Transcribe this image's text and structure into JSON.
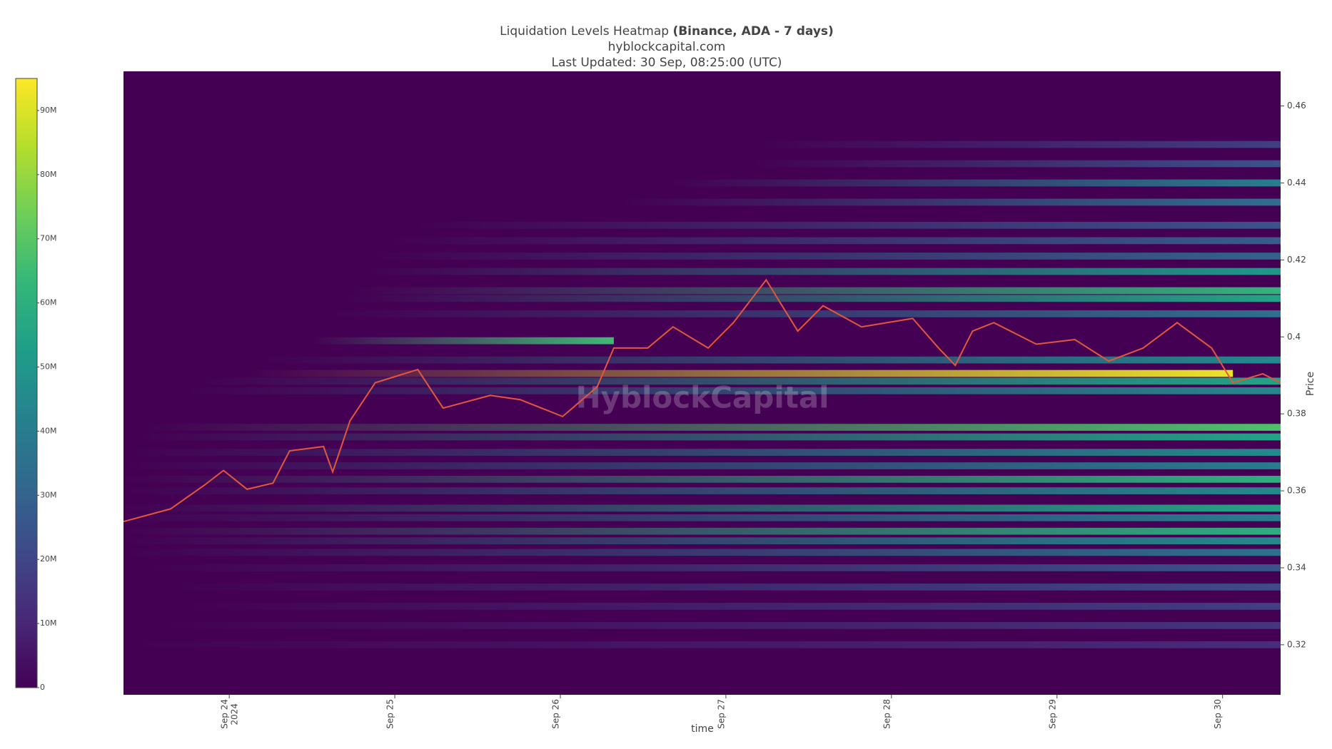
{
  "chart_data": {
    "type": "heatmap",
    "title": "Liquidation Levels Heatmap",
    "title_bold": "(Binance, ADA - 7 days)",
    "subtitle": "hyblockcapital.com",
    "updated": "Last Updated: 30 Sep, 08:25:00 (UTC)",
    "watermark": "HyblockCapital",
    "x_label": "time",
    "y_label": "Price",
    "xlim": [
      "2024-09-23T08:40",
      "2024-09-30T08:25"
    ],
    "xticks": [
      {
        "value": "2024-09-24T00:00",
        "label": "Sep 24",
        "year": "2024"
      },
      {
        "value": "2024-09-25T00:00",
        "label": "Sep 25"
      },
      {
        "value": "2024-09-26T00:00",
        "label": "Sep 26"
      },
      {
        "value": "2024-09-27T00:00",
        "label": "Sep 27"
      },
      {
        "value": "2024-09-28T00:00",
        "label": "Sep 28"
      },
      {
        "value": "2024-09-29T00:00",
        "label": "Sep 29"
      },
      {
        "value": "2024-09-30T00:00",
        "label": "Sep 30"
      }
    ],
    "ylim": [
      0.307,
      0.469
    ],
    "yticks": [
      0.32,
      0.34,
      0.36,
      0.38,
      0.4,
      0.42,
      0.44,
      0.46
    ],
    "zlim": [
      0,
      95000000
    ],
    "zticks": [
      0,
      {
        "value": 10000000,
        "label": "10M"
      },
      {
        "value": 20000000,
        "label": "20M"
      },
      {
        "value": 30000000,
        "label": "30M"
      },
      {
        "value": 40000000,
        "label": "40M"
      },
      {
        "value": 50000000,
        "label": "50M"
      },
      {
        "value": 60000000,
        "label": "60M"
      },
      {
        "value": 70000000,
        "label": "70M"
      },
      {
        "value": 80000000,
        "label": "80M"
      },
      {
        "value": 90000000,
        "label": "90M"
      }
    ],
    "colorscale": "viridis",
    "levels": [
      {
        "price": 0.45,
        "from": "2024-09-27T05:00",
        "to": "2024-09-30T08:25",
        "value": 18000000
      },
      {
        "price": 0.445,
        "from": "2024-09-27T04:00",
        "to": "2024-09-30T08:25",
        "value": 25000000
      },
      {
        "price": 0.44,
        "from": "2024-09-26T16:00",
        "to": "2024-09-30T08:25",
        "value": 40000000
      },
      {
        "price": 0.435,
        "from": "2024-09-26T09:00",
        "to": "2024-09-30T08:25",
        "value": 35000000
      },
      {
        "price": 0.429,
        "from": "2024-09-25T03:00",
        "to": "2024-09-30T08:25",
        "value": 25000000
      },
      {
        "price": 0.425,
        "from": "2024-09-24T23:00",
        "to": "2024-09-30T08:25",
        "value": 28000000
      },
      {
        "price": 0.421,
        "from": "2024-09-24T21:00",
        "to": "2024-09-30T08:25",
        "value": 30000000
      },
      {
        "price": 0.417,
        "from": "2024-09-24T20:00",
        "to": "2024-09-30T08:25",
        "value": 50000000
      },
      {
        "price": 0.412,
        "from": "2024-09-24T18:00",
        "to": "2024-09-30T08:25",
        "value": 62000000
      },
      {
        "price": 0.41,
        "from": "2024-09-24T17:00",
        "to": "2024-09-30T08:25",
        "value": 55000000
      },
      {
        "price": 0.406,
        "from": "2024-09-24T15:00",
        "to": "2024-09-30T08:25",
        "value": 35000000
      },
      {
        "price": 0.399,
        "from": "2024-09-24T12:00",
        "to": "2024-09-26T07:45",
        "value": 65000000
      },
      {
        "price": 0.394,
        "from": "2024-09-24T05:00",
        "to": "2024-09-30T08:25",
        "value": 45000000
      },
      {
        "price": 0.3905,
        "from": "2024-09-24T03:00",
        "to": "2024-09-30T01:30",
        "value": 92000000
      },
      {
        "price": 0.3885,
        "from": "2024-09-23T20:00",
        "to": "2024-09-30T08:25",
        "value": 55000000
      },
      {
        "price": 0.386,
        "from": "2024-09-23T18:00",
        "to": "2024-09-30T08:25",
        "value": 45000000
      },
      {
        "price": 0.3765,
        "from": "2024-09-23T12:00",
        "to": "2024-09-30T08:25",
        "value": 68000000
      },
      {
        "price": 0.374,
        "from": "2024-09-23T11:00",
        "to": "2024-09-30T08:25",
        "value": 55000000
      },
      {
        "price": 0.37,
        "from": "2024-09-23T10:00",
        "to": "2024-09-30T08:25",
        "value": 45000000
      },
      {
        "price": 0.3665,
        "from": "2024-09-23T09:00",
        "to": "2024-09-30T08:25",
        "value": 40000000
      },
      {
        "price": 0.363,
        "from": "2024-09-23T08:40",
        "to": "2024-09-30T08:25",
        "value": 60000000
      },
      {
        "price": 0.36,
        "from": "2024-09-23T08:40",
        "to": "2024-09-30T08:25",
        "value": 45000000
      },
      {
        "price": 0.3555,
        "from": "2024-09-23T08:40",
        "to": "2024-09-30T08:25",
        "value": 55000000
      },
      {
        "price": 0.353,
        "from": "2024-09-23T08:40",
        "to": "2024-09-30T08:25",
        "value": 40000000
      },
      {
        "price": 0.3495,
        "from": "2024-09-23T08:40",
        "to": "2024-09-30T08:25",
        "value": 60000000
      },
      {
        "price": 0.347,
        "from": "2024-09-23T08:40",
        "to": "2024-09-30T08:25",
        "value": 45000000
      },
      {
        "price": 0.344,
        "from": "2024-09-23T08:40",
        "to": "2024-09-30T08:25",
        "value": 35000000
      },
      {
        "price": 0.34,
        "from": "2024-09-23T12:00",
        "to": "2024-09-30T08:25",
        "value": 25000000
      },
      {
        "price": 0.335,
        "from": "2024-09-23T16:00",
        "to": "2024-09-30T08:25",
        "value": 22000000
      },
      {
        "price": 0.33,
        "from": "2024-09-23T18:00",
        "to": "2024-09-30T08:25",
        "value": 18000000
      },
      {
        "price": 0.325,
        "from": "2024-09-23T14:00",
        "to": "2024-09-30T08:25",
        "value": 15000000
      },
      {
        "price": 0.32,
        "from": "2024-09-23T10:00",
        "to": "2024-09-30T08:25",
        "value": 12000000
      }
    ],
    "series": [
      {
        "color": "#e4573d",
        "x": [
          "2024-09-23T08:40",
          "2024-09-23T15:30",
          "2024-09-23T20:25",
          "2024-09-23T23:10",
          "2024-09-24T02:35",
          "2024-09-24T06:20",
          "2024-09-24T08:45",
          "2024-09-24T13:40",
          "2024-09-24T15:00",
          "2024-09-24T17:30",
          "2024-09-24T21:10",
          "2024-09-25T03:20",
          "2024-09-25T07:00",
          "2024-09-25T13:50",
          "2024-09-25T18:10",
          "2024-09-26T00:20",
          "2024-09-26T05:20",
          "2024-09-26T07:45",
          "2024-09-26T12:40",
          "2024-09-26T16:20",
          "2024-09-26T21:25",
          "2024-09-27T01:05",
          "2024-09-27T05:50",
          "2024-09-27T10:25",
          "2024-09-27T14:05",
          "2024-09-27T19:40",
          "2024-09-28T03:05",
          "2024-09-28T06:50",
          "2024-09-28T09:15",
          "2024-09-28T11:45",
          "2024-09-28T14:50",
          "2024-09-28T21:00",
          "2024-09-29T02:35",
          "2024-09-29T07:30",
          "2024-09-29T12:30",
          "2024-09-29T17:25",
          "2024-09-29T22:25",
          "2024-09-30T01:30",
          "2024-09-30T05:50",
          "2024-09-30T08:25"
        ],
        "values": [
          0.352,
          0.3553,
          0.3615,
          0.3653,
          0.3604,
          0.362,
          0.3704,
          0.3715,
          0.3649,
          0.3782,
          0.3881,
          0.3915,
          0.3815,
          0.3848,
          0.3837,
          0.3793,
          0.387,
          0.3971,
          0.3971,
          0.4026,
          0.3971,
          0.4037,
          0.4148,
          0.4015,
          0.4081,
          0.4026,
          0.4048,
          0.3971,
          0.3926,
          0.4015,
          0.4037,
          0.3981,
          0.3993,
          0.3937,
          0.3971,
          0.4037,
          0.3971,
          0.3881,
          0.3904,
          0.3881
        ]
      }
    ]
  }
}
